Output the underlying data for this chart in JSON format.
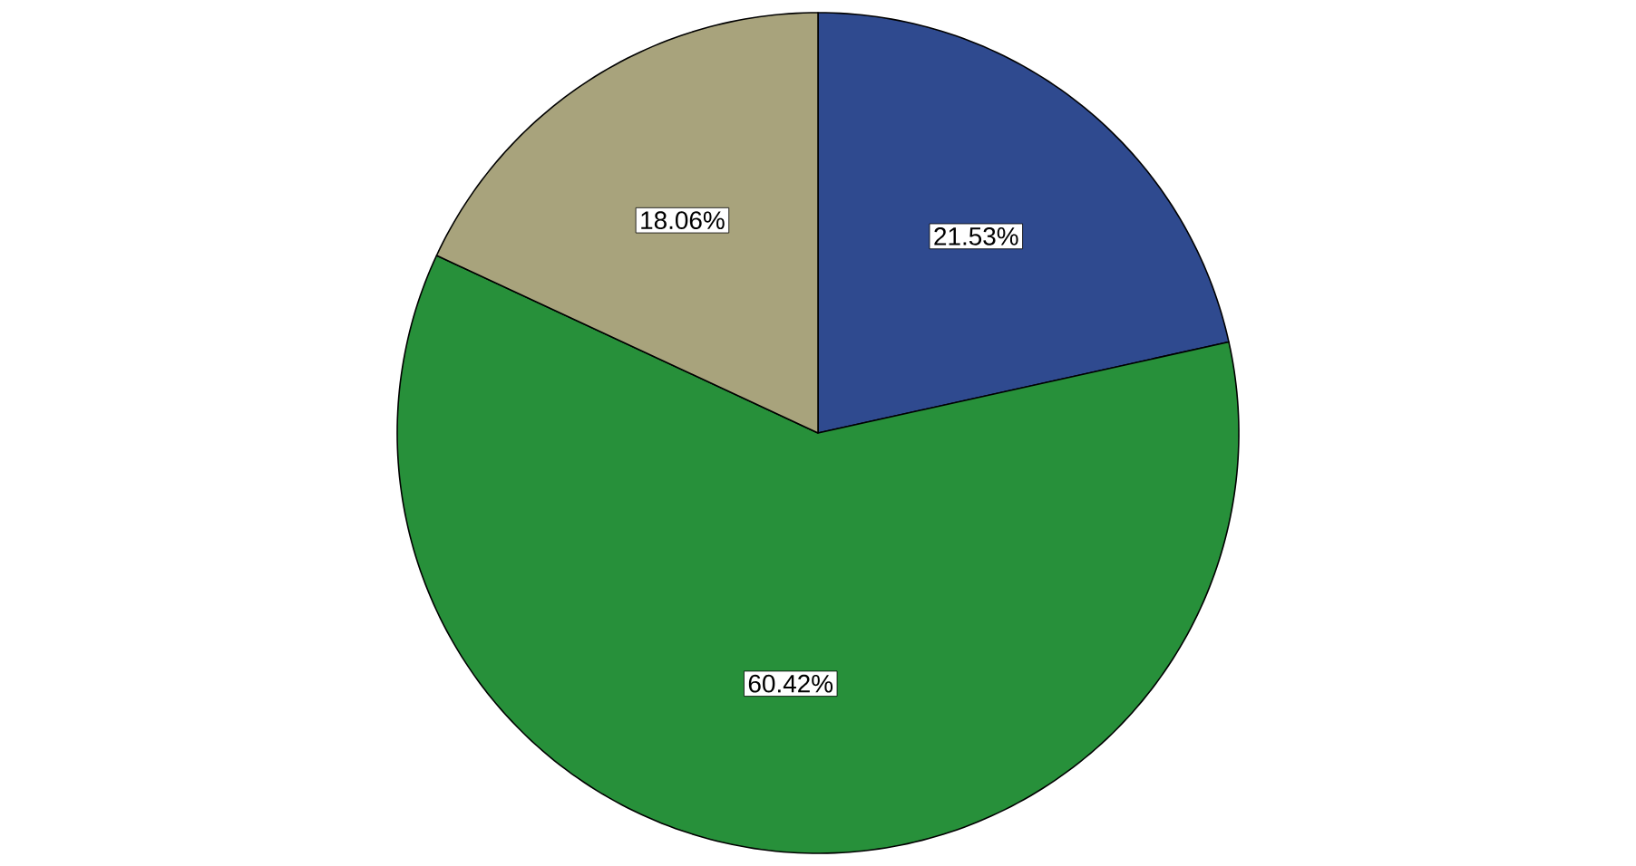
{
  "chart_data": {
    "type": "pie",
    "categories": [
      null,
      null,
      null
    ],
    "values": [
      21.53,
      60.42,
      18.06
    ],
    "colors": [
      "#2f4a8f",
      "#27903a",
      "#a8a37c"
    ],
    "value_labels": [
      "21.53%",
      "60.42%",
      "18.06%"
    ]
  }
}
